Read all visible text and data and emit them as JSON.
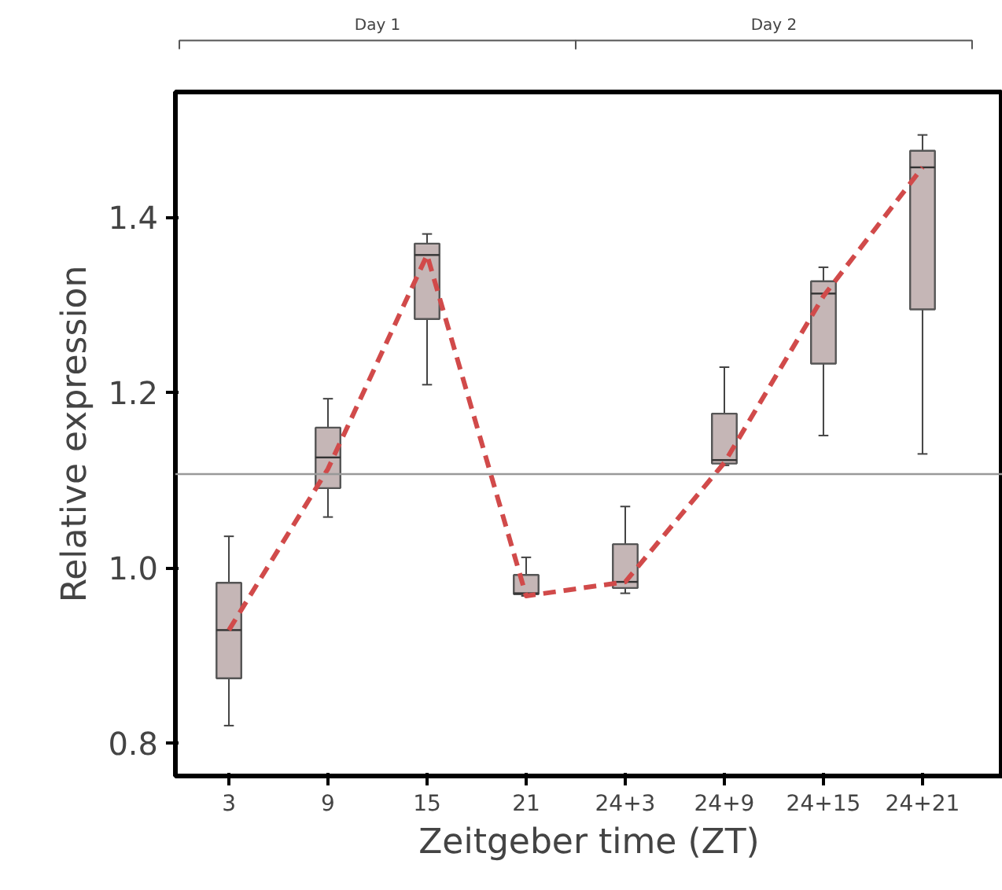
{
  "chart_data": {
    "type": "box",
    "xlabel": "Zeitgeber time (ZT)",
    "ylabel": "Relative expression",
    "categories": [
      "3",
      "9",
      "15",
      "21",
      "24+3",
      "24+9",
      "24+15",
      "24+21"
    ],
    "ylim": [
      0.7625,
      1.543
    ],
    "yticks": [
      0.8,
      {
        "value": 1.0,
        "label": "1.0"
      },
      1.2,
      1.4
    ],
    "grid": false,
    "series": [
      {
        "color": "#c5b6b6",
        "boxes": [
          {
            "low": 0.82,
            "q1": 0.874,
            "median": 0.929,
            "q3": 0.983,
            "high": 1.036
          },
          {
            "low": 1.058,
            "q1": 1.091,
            "median": 1.126,
            "q3": 1.16,
            "high": 1.193
          },
          {
            "low": 1.209,
            "q1": 1.284,
            "median": 1.357,
            "q3": 1.37,
            "high": 1.381
          },
          {
            "low": 0.968,
            "q1": 0.97,
            "median": 0.971,
            "q3": 0.992,
            "high": 1.012
          },
          {
            "low": 0.971,
            "q1": 0.977,
            "median": 0.984,
            "q3": 1.027,
            "high": 1.07
          },
          {
            "low": 1.117,
            "q1": 1.119,
            "median": 1.123,
            "q3": 1.176,
            "high": 1.229
          },
          {
            "low": 1.151,
            "q1": 1.233,
            "median": 1.313,
            "q3": 1.327,
            "high": 1.343
          },
          {
            "low": 1.13,
            "q1": 1.295,
            "median": 1.457,
            "q3": 1.476,
            "high": 1.494
          }
        ]
      },
      {
        "type": "line",
        "color": "#d14a4a",
        "line_style": "dashed",
        "marker": "none",
        "values": [
          0.929,
          1.113,
          1.357,
          0.968,
          0.984,
          1.12,
          1.31,
          1.457
        ]
      }
    ],
    "ref_lines": [
      {
        "axis": "y",
        "value": 1.107,
        "color": "#999999"
      }
    ],
    "annotations": [
      "Day 1",
      "Day 2"
    ]
  }
}
